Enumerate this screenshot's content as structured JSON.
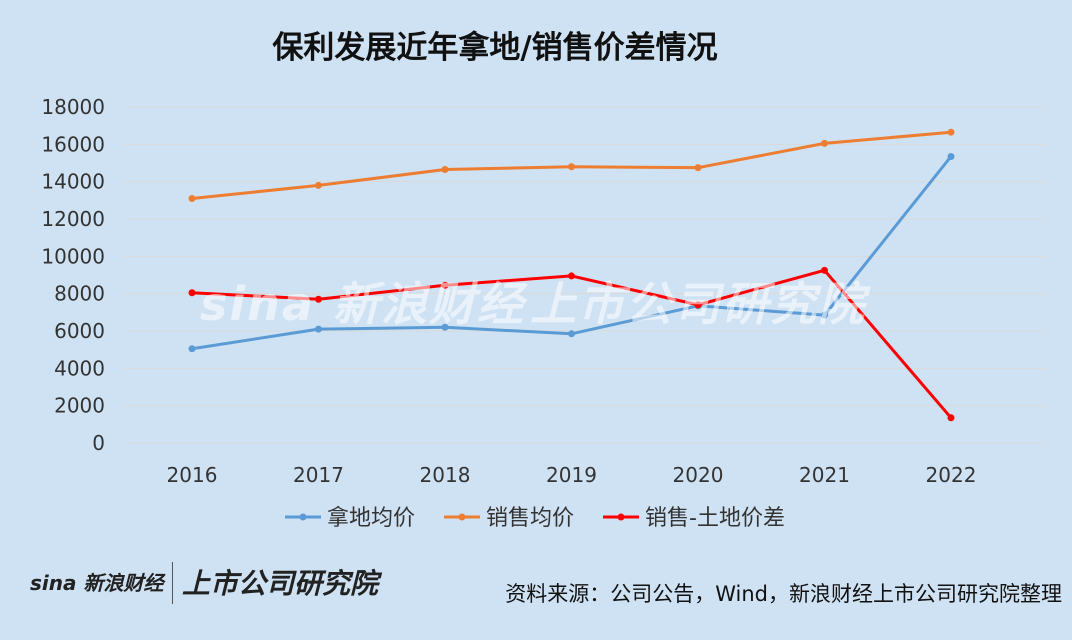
{
  "chart_data": {
    "type": "line",
    "title": "保利发展近年拿地/销售价差情况",
    "categories": [
      "2016",
      "2017",
      "2018",
      "2019",
      "2020",
      "2021",
      "2022"
    ],
    "ylim": [
      0,
      18000
    ],
    "yticks": [
      0,
      2000,
      4000,
      6000,
      8000,
      10000,
      12000,
      14000,
      16000,
      18000
    ],
    "grid": true,
    "legend_position": "bottom",
    "series": [
      {
        "name": "拿地均价",
        "color": "#5b9bd5",
        "values": [
          5050,
          6100,
          6200,
          5850,
          7350,
          6850,
          15350
        ]
      },
      {
        "name": "销售均价",
        "color": "#ed7d31",
        "values": [
          13100,
          13800,
          14650,
          14800,
          14750,
          16050,
          16650
        ]
      },
      {
        "name": "销售-土地价差",
        "color": "#ff0000",
        "values": [
          8050,
          7700,
          8450,
          8950,
          7400,
          9250,
          1350
        ]
      }
    ]
  },
  "watermark": {
    "sina": "sina 新浪财经",
    "institute": "上市公司研究院"
  },
  "footer": {
    "logo_sina": "sina 新浪财经",
    "logo_institute": "上市公司研究院",
    "source": "资料来源：公司公告，Wind，新浪财经上市公司研究院整理"
  }
}
